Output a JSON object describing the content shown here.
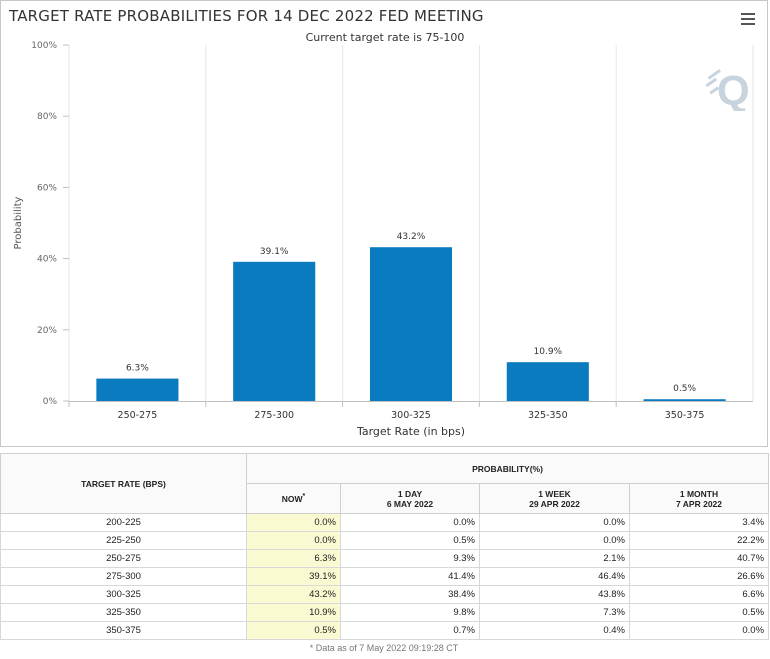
{
  "header": {
    "title": "TARGET RATE PROBABILITIES FOR 14 DEC 2022 FED MEETING",
    "subtitle": "Current target rate is 75-100"
  },
  "colors": {
    "bar": "#0a7bbf",
    "grid": "#e6e6e6",
    "now_col": "#fafad2",
    "logo": "#c7d3dd"
  },
  "logo_text": "Q",
  "chart_data": {
    "type": "bar",
    "title": "TARGET RATE PROBABILITIES FOR 14 DEC 2022 FED MEETING",
    "subtitle": "Current target rate is 75-100",
    "xlabel": "Target Rate (in bps)",
    "ylabel": "Probability",
    "categories": [
      "250-275",
      "275-300",
      "300-325",
      "325-350",
      "350-375"
    ],
    "values": [
      6.3,
      39.1,
      43.2,
      10.9,
      0.5
    ],
    "data_labels": [
      "6.3%",
      "39.1%",
      "43.2%",
      "10.9%",
      "0.5%"
    ],
    "ylim": [
      0,
      100
    ],
    "yticks": [
      0,
      20,
      40,
      60,
      80,
      100
    ],
    "ytick_labels": [
      "0%",
      "20%",
      "40%",
      "60%",
      "80%",
      "100%"
    ],
    "grid": true
  },
  "table": {
    "header_rate": "TARGET RATE (BPS)",
    "header_prob": "PROBABILITY(%)",
    "columns": [
      {
        "line1": "NOW",
        "line2": "",
        "marker": "*"
      },
      {
        "line1": "1 DAY",
        "line2": "6 MAY 2022"
      },
      {
        "line1": "1 WEEK",
        "line2": "29 APR 2022"
      },
      {
        "line1": "1 MONTH",
        "line2": "7 APR 2022"
      }
    ],
    "rows": [
      {
        "rate": "200-225",
        "now": "0.0%",
        "day": "0.0%",
        "week": "0.0%",
        "month": "3.4%"
      },
      {
        "rate": "225-250",
        "now": "0.0%",
        "day": "0.5%",
        "week": "0.0%",
        "month": "22.2%"
      },
      {
        "rate": "250-275",
        "now": "6.3%",
        "day": "9.3%",
        "week": "2.1%",
        "month": "40.7%"
      },
      {
        "rate": "275-300",
        "now": "39.1%",
        "day": "41.4%",
        "week": "46.4%",
        "month": "26.6%"
      },
      {
        "rate": "300-325",
        "now": "43.2%",
        "day": "38.4%",
        "week": "43.8%",
        "month": "6.6%"
      },
      {
        "rate": "325-350",
        "now": "10.9%",
        "day": "9.8%",
        "week": "7.3%",
        "month": "0.5%"
      },
      {
        "rate": "350-375",
        "now": "0.5%",
        "day": "0.7%",
        "week": "0.4%",
        "month": "0.0%"
      }
    ],
    "footnote": "* Data as of 7 May 2022 09:19:28 CT"
  }
}
